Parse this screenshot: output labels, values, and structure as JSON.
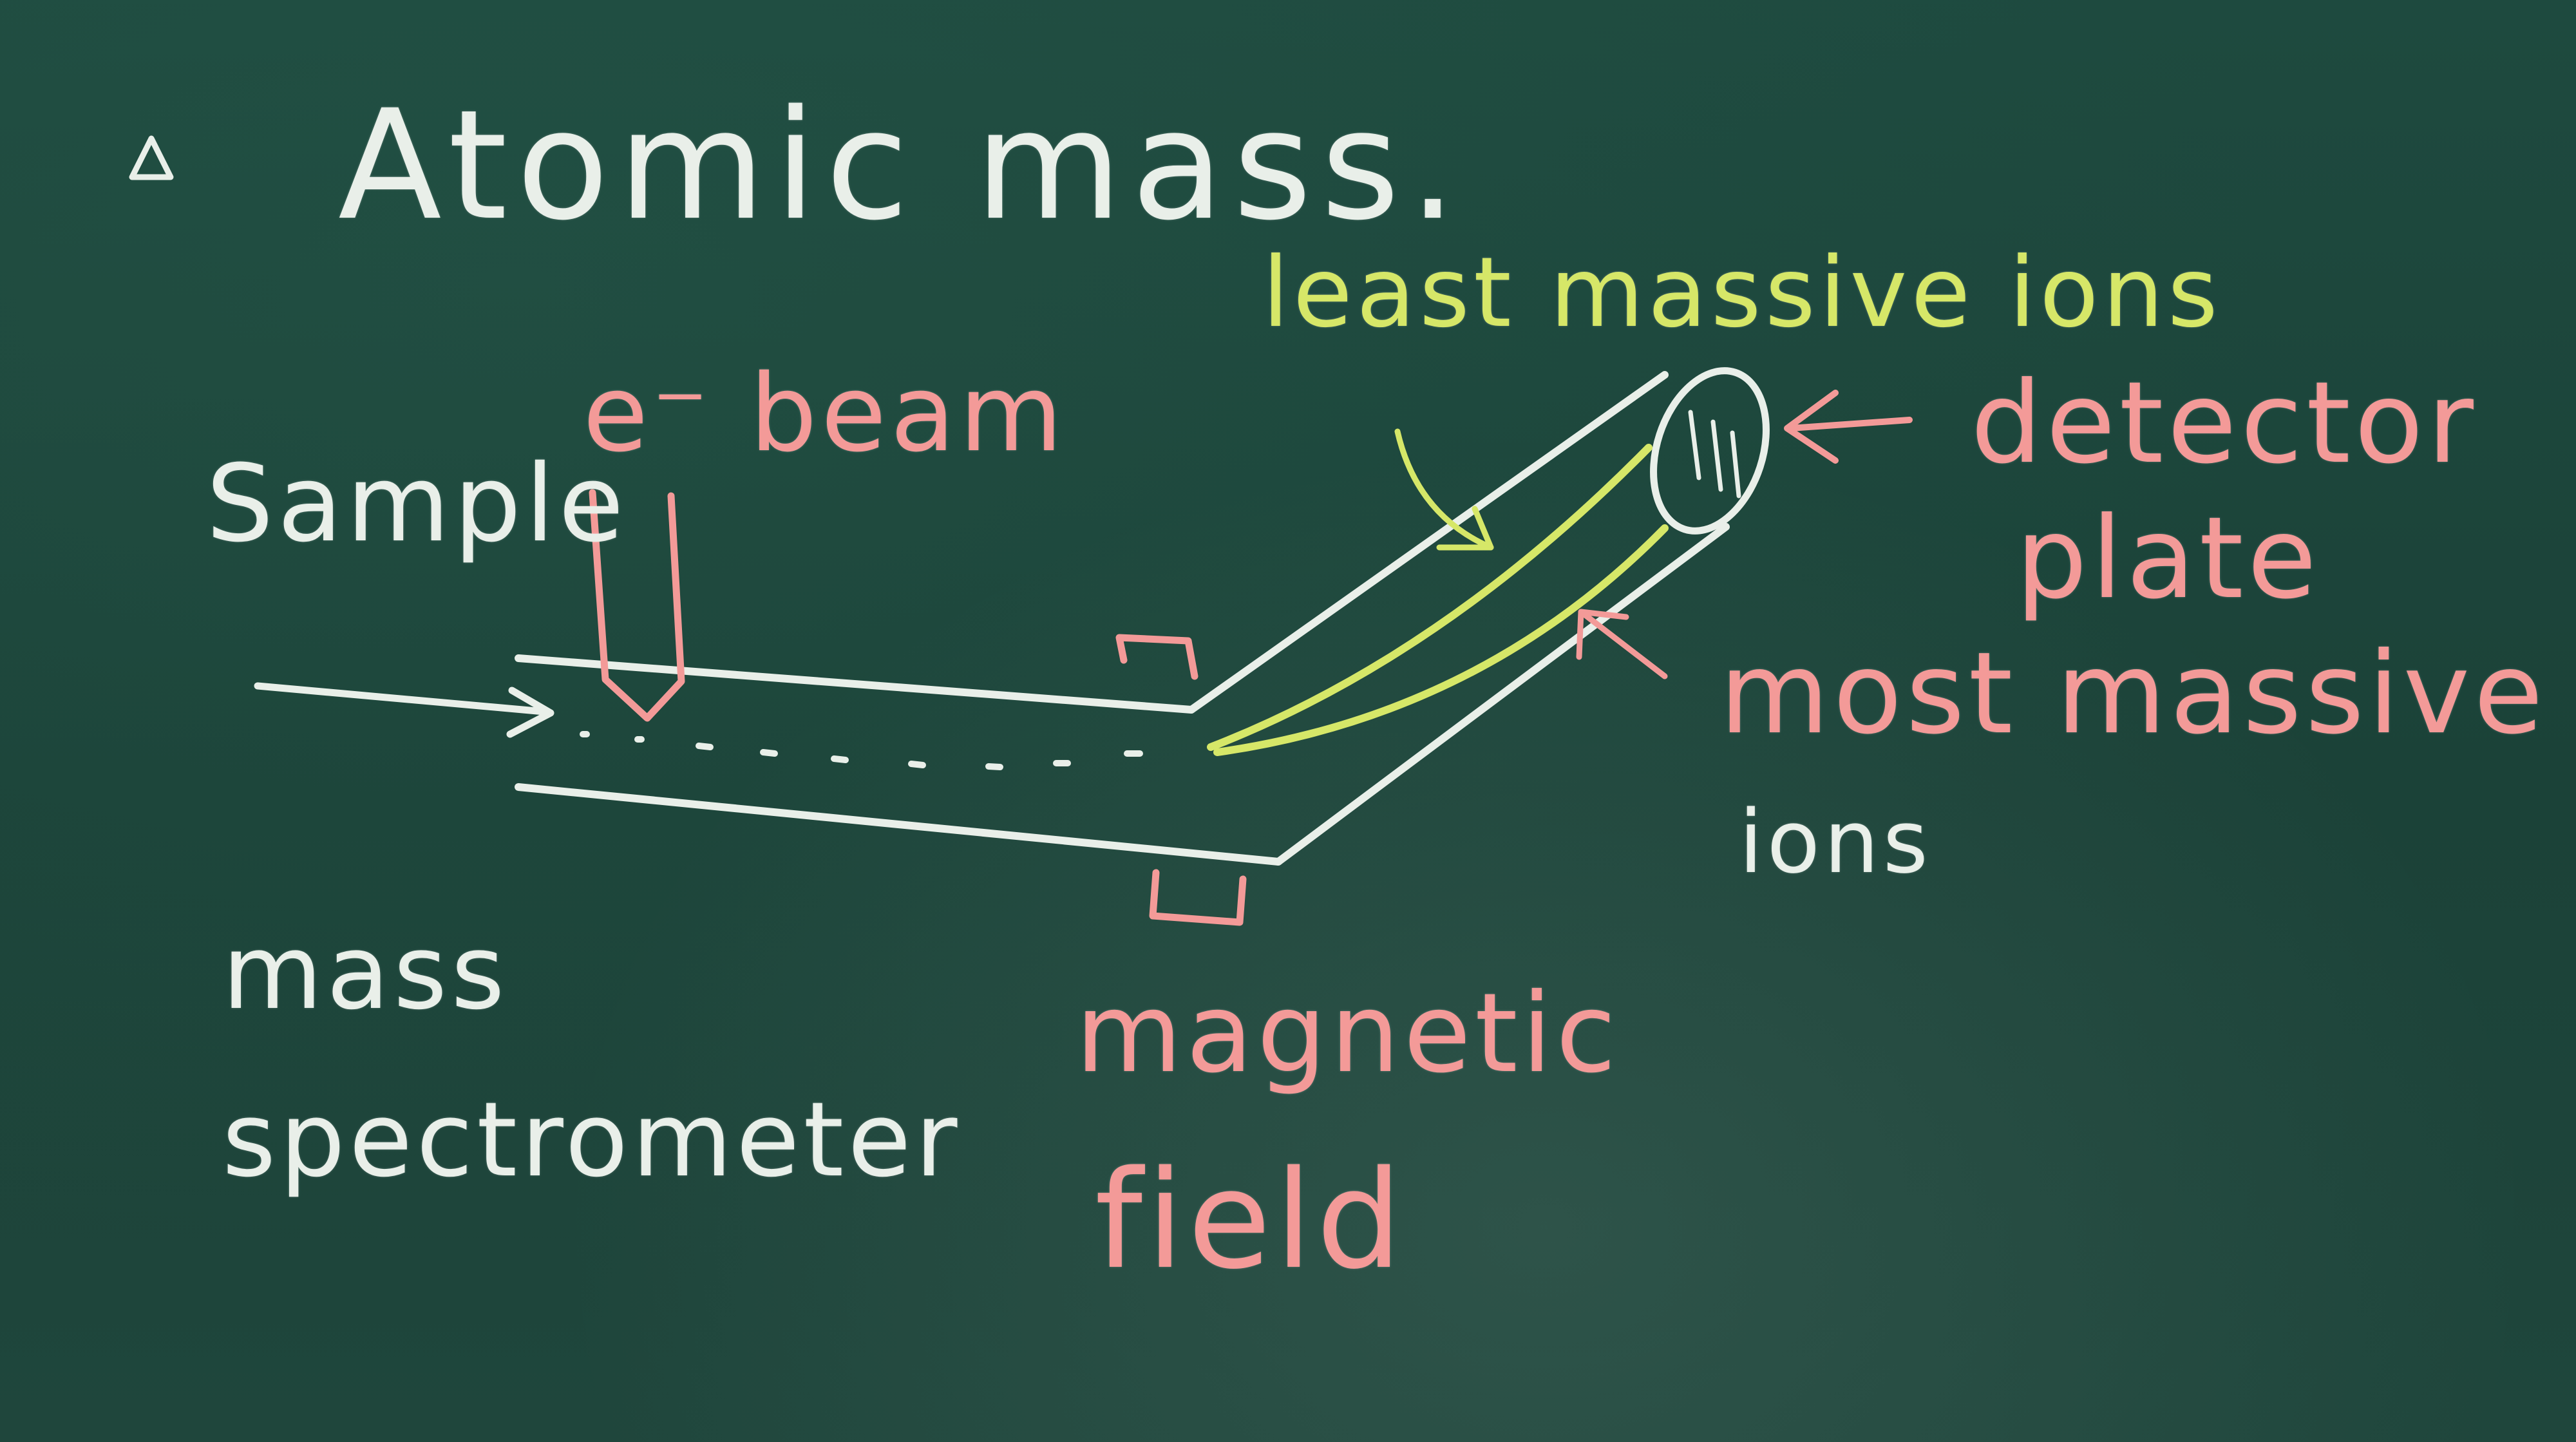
{
  "colors": {
    "board": "#1d3f37",
    "chalk_white": "#e9efe9",
    "chalk_pink": "#f39a98",
    "chalk_yellow": "#d6e768"
  },
  "heading": {
    "symbol": "▵",
    "title": "Atomic mass."
  },
  "labels": {
    "sample": "Sample",
    "e_beam": "e⁻ beam",
    "least_massive": "least massive ions",
    "detector_line1": "detector",
    "detector_line2": "plate",
    "most_massive_line1": "most massive",
    "most_massive_line2": "ions",
    "mass_spec_line1": "mass",
    "mass_spec_line2": "spectrometer",
    "magnetic_line1": "magnetic",
    "magnetic_line2": "field"
  }
}
